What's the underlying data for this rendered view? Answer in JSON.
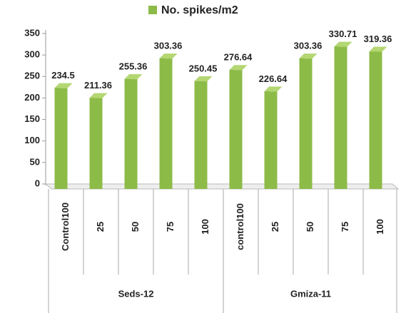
{
  "chart_data": {
    "type": "bar3d",
    "legend": "No. spikes/m2",
    "color": "#8dbb48",
    "groups": [
      {
        "name": "Seds-12",
        "categories": [
          "Control100",
          "25",
          "50",
          "75",
          "100"
        ]
      },
      {
        "name": "Gmiza-11",
        "categories": [
          "control100",
          "25",
          "50",
          "75",
          "100"
        ]
      }
    ],
    "values": [
      234.5,
      211.36,
      255.36,
      303.36,
      250.45,
      276.64,
      226.64,
      303.36,
      330.71,
      319.36
    ],
    "ylim": [
      0,
      350
    ],
    "yticks": [
      0,
      50,
      100,
      150,
      200,
      250,
      300,
      350
    ]
  }
}
